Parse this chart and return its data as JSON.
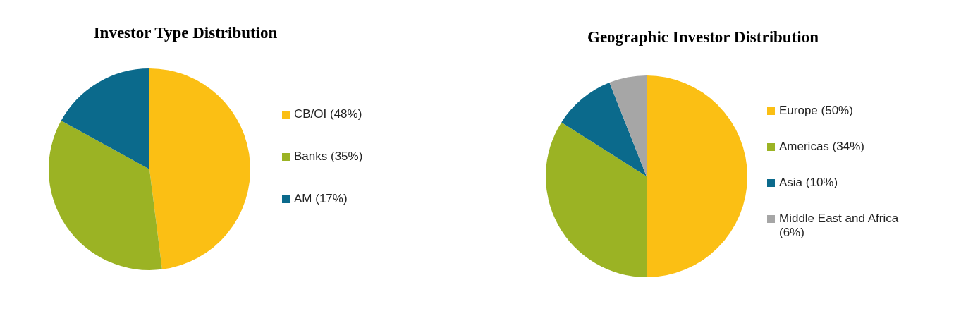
{
  "chart_data": [
    {
      "type": "pie",
      "title": "Investor Type Distribution",
      "categories": [
        "CB/OI (48%)",
        "Banks (35%)",
        "AM (17%)"
      ],
      "values": [
        48,
        35,
        17
      ],
      "colors": [
        "#fbbf14",
        "#9bb324",
        "#0b6a8c"
      ],
      "legend": "right"
    },
    {
      "type": "pie",
      "title": "Geographic Investor Distribution",
      "categories": [
        "Europe (50%)",
        "Americas (34%)",
        "Asia (10%)",
        "Middle East and Africa (6%)"
      ],
      "values": [
        50,
        34,
        10,
        6
      ],
      "colors": [
        "#fbbf14",
        "#9bb324",
        "#0b6a8c",
        "#a6a6a6"
      ],
      "legend": "right"
    }
  ]
}
